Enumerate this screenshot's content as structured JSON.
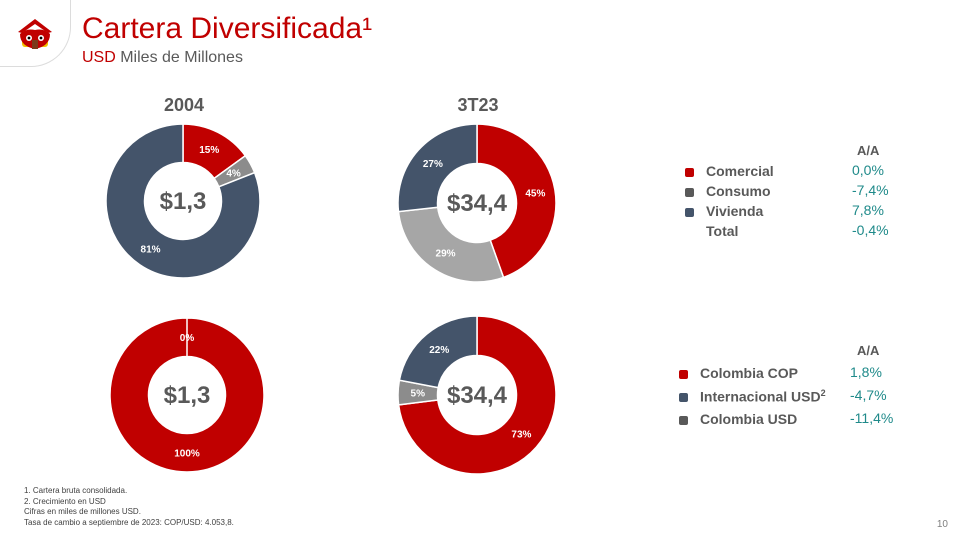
{
  "header": {
    "title": "Cartera Diversificada¹",
    "subtitle_currency": "USD",
    "subtitle_rest": " Miles de Millones"
  },
  "colors": {
    "red": "#c00000",
    "gray": "#8c8c8c",
    "light_gray": "#a6a6a6",
    "navy": "#44546a",
    "dark_gray": "#595959",
    "teal": "#1f8a8a"
  },
  "chart_data": [
    {
      "type": "pie",
      "variant": "donut",
      "column": "2004",
      "center_label": "$1,3",
      "series": [
        {
          "name": "Comercial",
          "value": 15,
          "label": "15%"
        },
        {
          "name": "Consumo",
          "value": 4,
          "label": "4%"
        },
        {
          "name": "Vivienda",
          "value": 81,
          "label": "81%"
        }
      ]
    },
    {
      "type": "pie",
      "variant": "donut",
      "column": "3T23",
      "center_label": "$34,4",
      "series": [
        {
          "name": "Comercial",
          "value": 45,
          "label": "45%"
        },
        {
          "name": "Consumo",
          "value": 29,
          "label": "29%"
        },
        {
          "name": "Vivienda",
          "value": 27,
          "label": "27%"
        }
      ]
    },
    {
      "type": "pie",
      "variant": "donut",
      "column": "2004",
      "center_label": "$1,3",
      "series": [
        {
          "name": "Colombia COP",
          "value": 100,
          "label": "100%"
        },
        {
          "name": "Internacional USD",
          "value": 0,
          "label": "0%"
        }
      ]
    },
    {
      "type": "pie",
      "variant": "donut",
      "column": "3T23",
      "center_label": "$34,4",
      "series": [
        {
          "name": "Colombia COP",
          "value": 73,
          "label": "73%"
        },
        {
          "name": "Colombia USD",
          "value": 5,
          "label": "5%"
        },
        {
          "name": "Internacional USD",
          "value": 22,
          "label": "22%"
        }
      ]
    }
  ],
  "columns": {
    "left": "2004",
    "right": "3T23"
  },
  "legend_top": {
    "header": "A/A",
    "items": [
      {
        "label": "Comercial",
        "value": "0,0%",
        "color": "#c00000"
      },
      {
        "label": "Consumo",
        "value": "-7,4%",
        "color": "#595959"
      },
      {
        "label": "Vivienda",
        "value": "7,8%",
        "color": "#44546a"
      },
      {
        "label": "Total",
        "value": "-0,4%",
        "color": ""
      }
    ]
  },
  "legend_bottom": {
    "header": "A/A",
    "items": [
      {
        "label": "Colombia COP",
        "sup": "",
        "value": "1,8%",
        "color": "#c00000"
      },
      {
        "label": "Internacional USD",
        "sup": "2",
        "value": "-4,7%",
        "color": "#44546a"
      },
      {
        "label": "Colombia USD",
        "sup": "",
        "value": "-11,4%",
        "color": "#595959"
      }
    ]
  },
  "footnotes": [
    "1. Cartera bruta consolidada.",
    "2. Crecimiento  en USD",
    "Cifras  en miles de millones  USD.",
    "Tasa de cambio a septiembre de 2023: COP/USD: 4.053,8."
  ],
  "page_number": "10"
}
